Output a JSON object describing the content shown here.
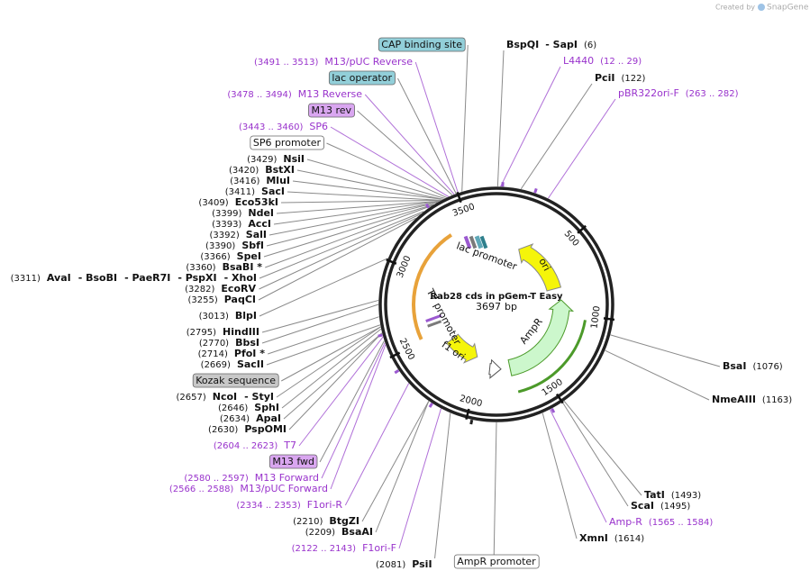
{
  "credit": {
    "prefix": "Created by",
    "brand": "SnapGene"
  },
  "map": {
    "name": "Rab28 cds in pGem-T Easy",
    "length": 3697,
    "length_unit": "bp",
    "ticks": [
      500,
      1000,
      1500,
      2000,
      2500,
      3000,
      3500
    ],
    "features": [
      "lac promoter",
      "ori",
      "AmpR",
      "f1 ori",
      "T7 promoter"
    ]
  },
  "left_labels": [
    {
      "kind": "box",
      "text": "CAP binding site",
      "color": "#92cfd9"
    },
    {
      "kind": "primer",
      "range": "(3491 .. 3513)",
      "name": "M13/pUC Reverse"
    },
    {
      "kind": "box",
      "text": "lac operator",
      "color": "#92cfd9"
    },
    {
      "kind": "primer",
      "range": "(3478 .. 3494)",
      "name": "M13 Reverse"
    },
    {
      "kind": "box",
      "text": "M13 rev",
      "color": "#d9a6f0"
    },
    {
      "kind": "primer",
      "range": "(3443 .. 3460)",
      "name": "SP6"
    },
    {
      "kind": "box",
      "text": "SP6 promoter",
      "color": "#ffffff"
    },
    {
      "kind": "enzyme",
      "pos": "(3429)",
      "names": [
        "NsiI"
      ]
    },
    {
      "kind": "enzyme",
      "pos": "(3420)",
      "names": [
        "BstXI"
      ]
    },
    {
      "kind": "enzyme",
      "pos": "(3416)",
      "names": [
        "MluI"
      ]
    },
    {
      "kind": "enzyme",
      "pos": "(3411)",
      "names": [
        "SacI"
      ]
    },
    {
      "kind": "enzyme",
      "pos": "(3409)",
      "names": [
        "Eco53kI"
      ]
    },
    {
      "kind": "enzyme",
      "pos": "(3399)",
      "names": [
        "NdeI"
      ]
    },
    {
      "kind": "enzyme",
      "pos": "(3393)",
      "names": [
        "AccI"
      ]
    },
    {
      "kind": "enzyme",
      "pos": "(3392)",
      "names": [
        "SalI"
      ]
    },
    {
      "kind": "enzyme",
      "pos": "(3390)",
      "names": [
        "SbfI"
      ]
    },
    {
      "kind": "enzyme",
      "pos": "(3366)",
      "names": [
        "SpeI"
      ]
    },
    {
      "kind": "enzyme",
      "pos": "(3360)",
      "names": [
        "BsaBI *"
      ]
    },
    {
      "kind": "enzyme",
      "pos": "(3311)",
      "names": [
        "AvaI",
        "- BsoBI",
        "- PaeR7I",
        "- PspXI",
        "- XhoI"
      ]
    },
    {
      "kind": "enzyme",
      "pos": "(3282)",
      "names": [
        "EcoRV"
      ]
    },
    {
      "kind": "enzyme",
      "pos": "(3255)",
      "names": [
        "PaqCI"
      ]
    },
    {
      "kind": "enzyme",
      "pos": "(3013)",
      "names": [
        "BlpI"
      ]
    },
    {
      "kind": "enzyme",
      "pos": "(2795)",
      "names": [
        "HindIII"
      ]
    },
    {
      "kind": "enzyme",
      "pos": "(2770)",
      "names": [
        "BbsI"
      ]
    },
    {
      "kind": "enzyme",
      "pos": "(2714)",
      "names": [
        "PfoI *"
      ]
    },
    {
      "kind": "enzyme",
      "pos": "(2669)",
      "names": [
        "SacII"
      ]
    },
    {
      "kind": "box",
      "text": "Kozak sequence",
      "color": "#c8c8c8"
    },
    {
      "kind": "enzyme",
      "pos": "(2657)",
      "names": [
        "NcoI",
        "- StyI"
      ]
    },
    {
      "kind": "enzyme",
      "pos": "(2646)",
      "names": [
        "SphI"
      ]
    },
    {
      "kind": "enzyme",
      "pos": "(2634)",
      "names": [
        "ApaI"
      ]
    },
    {
      "kind": "enzyme",
      "pos": "(2630)",
      "names": [
        "PspOMI"
      ]
    },
    {
      "kind": "primer",
      "range": "(2604 .. 2623)",
      "name": "T7"
    },
    {
      "kind": "box",
      "text": "M13 fwd",
      "color": "#d9a6f0"
    },
    {
      "kind": "primer",
      "range": "(2580 .. 2597)",
      "name": "M13 Forward"
    },
    {
      "kind": "primer",
      "range": "(2566 .. 2588)",
      "name": "M13/pUC Forward"
    },
    {
      "kind": "primer",
      "range": "(2334 .. 2353)",
      "name": "F1ori-R"
    },
    {
      "kind": "enzyme",
      "pos": "(2210)",
      "names": [
        "BtgZI"
      ]
    },
    {
      "kind": "enzyme",
      "pos": "(2209)",
      "names": [
        "BsaAI"
      ]
    },
    {
      "kind": "primer",
      "range": "(2122 .. 2143)",
      "name": "F1ori-F"
    }
  ],
  "right_labels": [
    {
      "kind": "enzyme",
      "pos": "(6)",
      "names": [
        "BspQI",
        "- SapI"
      ]
    },
    {
      "kind": "primer",
      "range": "(12 .. 29)",
      "name": "L4440"
    },
    {
      "kind": "enzyme",
      "pos": "(122)",
      "names": [
        "PciI"
      ]
    },
    {
      "kind": "primer",
      "range": "(263 .. 282)",
      "name": "pBR322ori-F"
    },
    {
      "kind": "enzyme",
      "pos": "(1076)",
      "names": [
        "BsaI"
      ]
    },
    {
      "kind": "enzyme",
      "pos": "(1163)",
      "names": [
        "NmeAIII"
      ]
    },
    {
      "kind": "enzyme",
      "pos": "(1493)",
      "names": [
        "TatI"
      ]
    },
    {
      "kind": "enzyme",
      "pos": "(1495)",
      "names": [
        "ScaI"
      ]
    },
    {
      "kind": "primer",
      "range": "(1565 .. 1584)",
      "name": "Amp-R"
    },
    {
      "kind": "enzyme",
      "pos": "(1614)",
      "names": [
        "XmnI"
      ]
    },
    {
      "kind": "box",
      "text": "AmpR promoter",
      "color": "#ffffff"
    },
    {
      "kind": "enzyme",
      "pos": "(2081)",
      "names": [
        "PsiI"
      ]
    }
  ]
}
